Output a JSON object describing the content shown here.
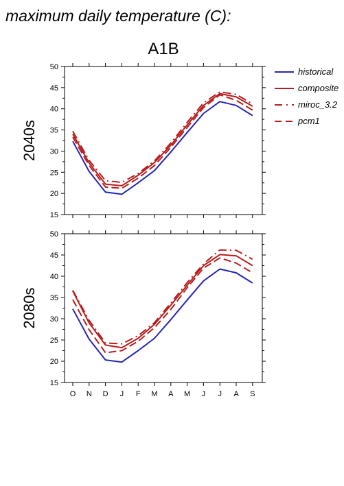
{
  "header": {
    "title": "maximum daily temperature (C):",
    "scenario": "A1B"
  },
  "colors": {
    "historical": "#2424b8",
    "models": "#b81c1c",
    "axis": "#000000"
  },
  "legend": {
    "placement": "right",
    "entries": [
      {
        "label": "historical",
        "dash": "solid",
        "color": "#2424b8"
      },
      {
        "label": "composite",
        "dash": "solid",
        "color": "#b81c1c"
      },
      {
        "label": "miroc_3.2",
        "dash": "dashdot",
        "color": "#b81c1c"
      },
      {
        "label": "pcm1",
        "dash": "dashed",
        "color": "#b81c1c"
      }
    ]
  },
  "chart_data": [
    {
      "type": "line",
      "title": "",
      "ylabel": "2040s",
      "xlabel": "",
      "categories": [
        "O",
        "N",
        "D",
        "J",
        "F",
        "M",
        "A",
        "M",
        "J",
        "J",
        "A",
        "S"
      ],
      "ylim": [
        15,
        50
      ],
      "yticks": [
        15,
        20,
        25,
        30,
        35,
        40,
        45,
        50
      ],
      "grid": false,
      "series": [
        {
          "name": "historical",
          "values": [
            32.3,
            25.2,
            20.3,
            19.8,
            22.5,
            25.4,
            29.8,
            34.4,
            38.9,
            41.7,
            40.8,
            38.4
          ]
        },
        {
          "name": "composite",
          "values": [
            34.0,
            27.2,
            22.2,
            21.8,
            24.3,
            27.3,
            31.4,
            36.2,
            40.8,
            43.6,
            42.8,
            40.6
          ]
        },
        {
          "name": "miroc_3.2",
          "values": [
            34.7,
            27.8,
            23.0,
            22.6,
            24.7,
            27.7,
            31.9,
            36.8,
            41.4,
            44.0,
            43.4,
            41.1
          ]
        },
        {
          "name": "pcm1",
          "values": [
            33.3,
            26.6,
            21.5,
            21.2,
            23.6,
            26.6,
            30.9,
            35.6,
            40.3,
            43.3,
            42.0,
            39.7
          ]
        }
      ]
    },
    {
      "type": "line",
      "title": "",
      "ylabel": "2080s",
      "xlabel": "",
      "categories": [
        "O",
        "N",
        "D",
        "J",
        "F",
        "M",
        "A",
        "M",
        "J",
        "J",
        "A",
        "S"
      ],
      "ylim": [
        15,
        50
      ],
      "yticks": [
        15,
        20,
        25,
        30,
        35,
        40,
        45,
        50
      ],
      "grid": false,
      "series": [
        {
          "name": "historical",
          "values": [
            32.3,
            25.2,
            20.3,
            19.8,
            22.5,
            25.4,
            29.8,
            34.4,
            38.9,
            41.7,
            40.8,
            38.4
          ]
        },
        {
          "name": "composite",
          "values": [
            36.5,
            29.0,
            23.8,
            23.2,
            25.4,
            28.7,
            33.2,
            37.9,
            42.5,
            45.1,
            44.8,
            42.5
          ]
        },
        {
          "name": "miroc_3.2",
          "values": [
            36.7,
            29.6,
            24.3,
            24.1,
            26.0,
            29.1,
            33.7,
            38.5,
            42.9,
            46.2,
            46.1,
            44.0
          ]
        },
        {
          "name": "pcm1",
          "values": [
            34.5,
            27.4,
            22.0,
            22.5,
            24.7,
            27.9,
            32.2,
            37.3,
            41.9,
            44.3,
            43.1,
            40.8
          ]
        }
      ]
    }
  ]
}
